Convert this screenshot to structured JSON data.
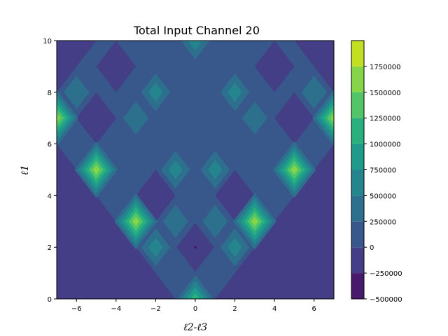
{
  "chart_data": {
    "type": "heatmap",
    "title": "Total Input Channel 20",
    "xlabel": "ℓ2-ℓ3",
    "ylabel": "ℓ1",
    "xlim": [
      -7,
      7
    ],
    "ylim": [
      0,
      10
    ],
    "x_ticks": [
      "−6",
      "−4",
      "−2",
      "0",
      "2",
      "4",
      "6"
    ],
    "y_ticks": [
      "0",
      "2",
      "4",
      "6",
      "8",
      "10"
    ],
    "colorbar": {
      "levels": [
        -500000,
        -250000,
        0,
        250000,
        500000,
        750000,
        1000000,
        1250000,
        1500000,
        1750000
      ],
      "tick_labels": [
        "−500000",
        "−250000",
        "0",
        "250000",
        "500000",
        "750000",
        "1000000",
        "1250000",
        "1500000",
        "1750000"
      ],
      "colors": [
        "#481a6c",
        "#433e85",
        "#38588c",
        "#2d708e",
        "#25858e",
        "#1e9b8a",
        "#2ab07f",
        "#52c569",
        "#86d549",
        "#c2df23"
      ]
    },
    "background_level": "-250000 to 0",
    "plateau_level": "0 to 250000",
    "peaks": [
      {
        "x": -5,
        "y": 5,
        "value": 1700000
      },
      {
        "x": 5,
        "y": 5,
        "value": 1700000
      },
      {
        "x": -3,
        "y": 3,
        "value": 1500000
      },
      {
        "x": 3,
        "y": 3,
        "value": 1500000
      },
      {
        "x": -7,
        "y": 7,
        "value": 1600000
      },
      {
        "x": 7,
        "y": 7,
        "value": 1600000
      },
      {
        "x": 0,
        "y": 0,
        "value": 1200000
      },
      {
        "x": 0,
        "y": 10,
        "value": 700000
      },
      {
        "x": -2,
        "y": 8,
        "value": 600000
      },
      {
        "x": 2,
        "y": 8,
        "value": 600000
      },
      {
        "x": -2,
        "y": 2,
        "value": 700000
      },
      {
        "x": 2,
        "y": 2,
        "value": 700000
      },
      {
        "x": -1,
        "y": 5,
        "value": 500000
      },
      {
        "x": 1,
        "y": 5,
        "value": 500000
      },
      {
        "x": -1,
        "y": 3,
        "value": 450000
      },
      {
        "x": 1,
        "y": 3,
        "value": 450000
      },
      {
        "x": -3,
        "y": 7,
        "value": 400000
      },
      {
        "x": 3,
        "y": 7,
        "value": 400000
      },
      {
        "x": -6,
        "y": 8,
        "value": 400000
      },
      {
        "x": 6,
        "y": 8,
        "value": 400000
      }
    ],
    "minimum": {
      "x": 0,
      "y": 2,
      "value": -450000
    }
  }
}
